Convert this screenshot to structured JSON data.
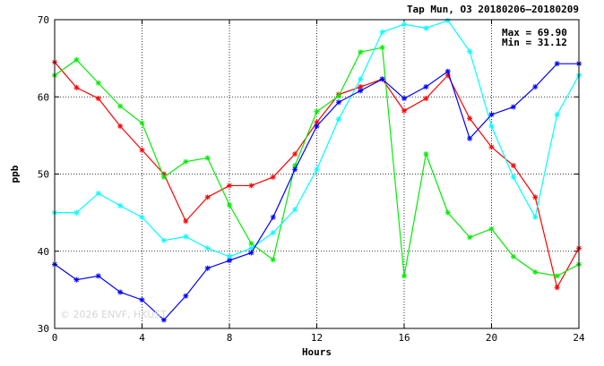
{
  "chart_data": {
    "type": "line",
    "title": "Tap Mun, O3 20180206–20180209",
    "xlabel": "Hours",
    "ylabel": "ppb",
    "xlim": [
      0,
      24
    ],
    "ylim": [
      30,
      70
    ],
    "xticks": [
      0,
      4,
      8,
      12,
      16,
      20,
      24
    ],
    "yticks": [
      30,
      40,
      50,
      60,
      70
    ],
    "grid": true,
    "annotations": {
      "max": "Max = 69.90",
      "min": "Min = 31.12",
      "watermark": "© 2026  ENVF, HKUST"
    },
    "x": [
      0,
      1,
      2,
      3,
      4,
      5,
      6,
      7,
      8,
      9,
      10,
      11,
      12,
      13,
      14,
      15,
      16,
      17,
      18,
      19,
      20,
      21,
      22,
      23,
      24
    ],
    "series": [
      {
        "color": "#ff0000",
        "values": [
          64.5,
          61.2,
          59.8,
          56.2,
          53.1,
          50.0,
          43.9,
          47.0,
          48.5,
          48.5,
          49.6,
          52.6,
          56.7,
          60.3,
          61.3,
          62.3,
          58.2,
          59.8,
          62.8,
          57.2,
          53.5,
          51.1,
          47.0,
          35.3,
          40.4
        ]
      },
      {
        "color": "#00ee00",
        "values": [
          62.8,
          64.8,
          61.8,
          58.8,
          56.6,
          49.6,
          51.6,
          52.1,
          46.0,
          41.0,
          38.9,
          51.1,
          58.1,
          60.1,
          65.8,
          66.4,
          36.8,
          52.6,
          45.0,
          41.8,
          42.9,
          39.3,
          37.3,
          36.8,
          38.3
        ]
      },
      {
        "color": "#00ffff",
        "values": [
          45.0,
          45.0,
          47.5,
          45.9,
          44.4,
          41.4,
          41.9,
          40.4,
          39.3,
          40.4,
          42.4,
          45.4,
          50.6,
          57.1,
          62.3,
          68.4,
          69.4,
          68.9,
          69.9,
          65.9,
          56.2,
          49.6,
          44.4,
          57.7,
          62.8
        ]
      },
      {
        "color": "#0000ff",
        "values": [
          38.3,
          36.3,
          36.8,
          34.7,
          33.7,
          31.1,
          34.2,
          37.8,
          38.8,
          39.8,
          44.4,
          50.6,
          56.2,
          59.3,
          60.8,
          62.3,
          59.8,
          61.3,
          63.3,
          54.6,
          57.7,
          58.7,
          61.3,
          64.3,
          64.3
        ]
      }
    ]
  }
}
